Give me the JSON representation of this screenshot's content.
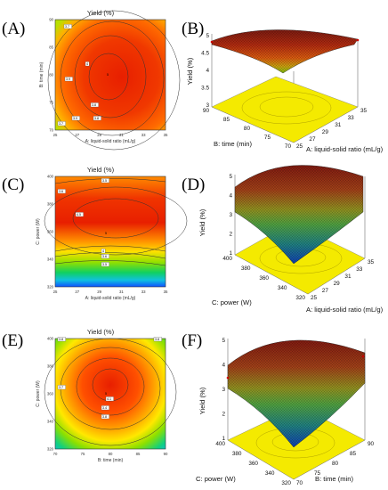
{
  "figure": {
    "panel_labels": [
      "(A)",
      "(B)",
      "(C)",
      "(D)",
      "(E)",
      "(F)"
    ]
  },
  "chart_data": [
    {
      "panel": "(A)",
      "type": "heatmap",
      "title": "Yield (%)",
      "xlabel": "A: liquid-solid ratio (mL/g)",
      "ylabel": "B: time (min)",
      "xlim": [
        25,
        35
      ],
      "ylim": [
        70,
        90
      ],
      "x_ticks": [
        "25",
        "27",
        "29",
        "31",
        "33",
        "35"
      ],
      "y_ticks": [
        "70",
        "75",
        "80",
        "85",
        "90"
      ],
      "contour_labels": [
        "3.7",
        "4",
        "3.9",
        "3.8",
        "3.9",
        "3.8",
        "3.7"
      ],
      "design_point_label": "5",
      "optimum": {
        "x": 31.2,
        "y": 81
      },
      "colors": {
        "high": "#e81f00",
        "mid": "#ff8c00",
        "low": "#9ee000"
      }
    },
    {
      "panel": "(B)",
      "type": "surface",
      "zlabel": "Yield (%)",
      "xlabel": "A: liquid-solid ratio (mL/g)",
      "ylabel": "B: time (min)",
      "x_ticks": [
        "25",
        "27",
        "29",
        "31",
        "33",
        "35"
      ],
      "y_ticks": [
        "70",
        "75",
        "80",
        "85",
        "90"
      ],
      "z_ticks": [
        "3",
        "3.5",
        "4",
        "4.5",
        "5"
      ],
      "zlim": [
        3,
        5
      ],
      "optimum": {
        "x": 31.2,
        "y": 81,
        "z": 4.6
      }
    },
    {
      "panel": "(C)",
      "type": "heatmap",
      "title": "Yield (%)",
      "xlabel": "A: liquid-solid ratio (mL/g)",
      "ylabel": "C: power (W)",
      "xlim": [
        25,
        35
      ],
      "ylim": [
        320,
        400
      ],
      "x_ticks": [
        "25",
        "27",
        "29",
        "31",
        "33",
        "35"
      ],
      "y_ticks": [
        "320",
        "340",
        "360",
        "380",
        "400"
      ],
      "contour_labels": [
        "3.5",
        "3.6",
        "4.5",
        "4",
        "3.6",
        "3.5"
      ],
      "design_point_label": "5",
      "optimum": {
        "x": 31.5,
        "y": 368
      },
      "colors": {
        "high": "#e81f00",
        "mid": "#ffd000",
        "low": "#1060ff"
      }
    },
    {
      "panel": "(D)",
      "type": "surface",
      "zlabel": "Yield (%)",
      "xlabel": "A: liquid-solid ratio (mL/g)",
      "ylabel": "C: power (W)",
      "x_ticks": [
        "25",
        "27",
        "29",
        "31",
        "33",
        "35"
      ],
      "y_ticks": [
        "320",
        "340",
        "360",
        "380",
        "400"
      ],
      "z_ticks": [
        "1",
        "2",
        "3",
        "4",
        "5"
      ],
      "zlim": [
        1,
        5
      ],
      "optimum": {
        "x": 31.5,
        "y": 368,
        "z": 4.7
      }
    },
    {
      "panel": "(E)",
      "type": "heatmap",
      "title": "Yield (%)",
      "xlabel": "B: time (min)",
      "ylabel": "C: power (W)",
      "xlim": [
        70,
        90
      ],
      "ylim": [
        320,
        400
      ],
      "x_ticks": [
        "70",
        "75",
        "80",
        "85",
        "90"
      ],
      "y_ticks": [
        "320",
        "340",
        "360",
        "380",
        "400"
      ],
      "contour_labels": [
        "3.8",
        "3.8",
        "4.1",
        "3.7",
        "3.4",
        "3.8"
      ],
      "design_point_label": "5",
      "optimum": {
        "x": 80.5,
        "y": 370
      },
      "colors": {
        "high": "#e81f00",
        "mid": "#ffd000",
        "low": "#1060ff"
      }
    },
    {
      "panel": "(F)",
      "type": "surface",
      "zlabel": "Yield (%)",
      "xlabel": "B: time (min)",
      "ylabel": "C: power (W)",
      "x_ticks": [
        "70",
        "75",
        "80",
        "85",
        "90"
      ],
      "y_ticks": [
        "320",
        "340",
        "360",
        "380",
        "400"
      ],
      "z_ticks": [
        "1",
        "2",
        "3",
        "4",
        "5"
      ],
      "zlim": [
        1,
        5
      ],
      "optimum": {
        "x": 80.5,
        "y": 370,
        "z": 4.7
      }
    }
  ]
}
